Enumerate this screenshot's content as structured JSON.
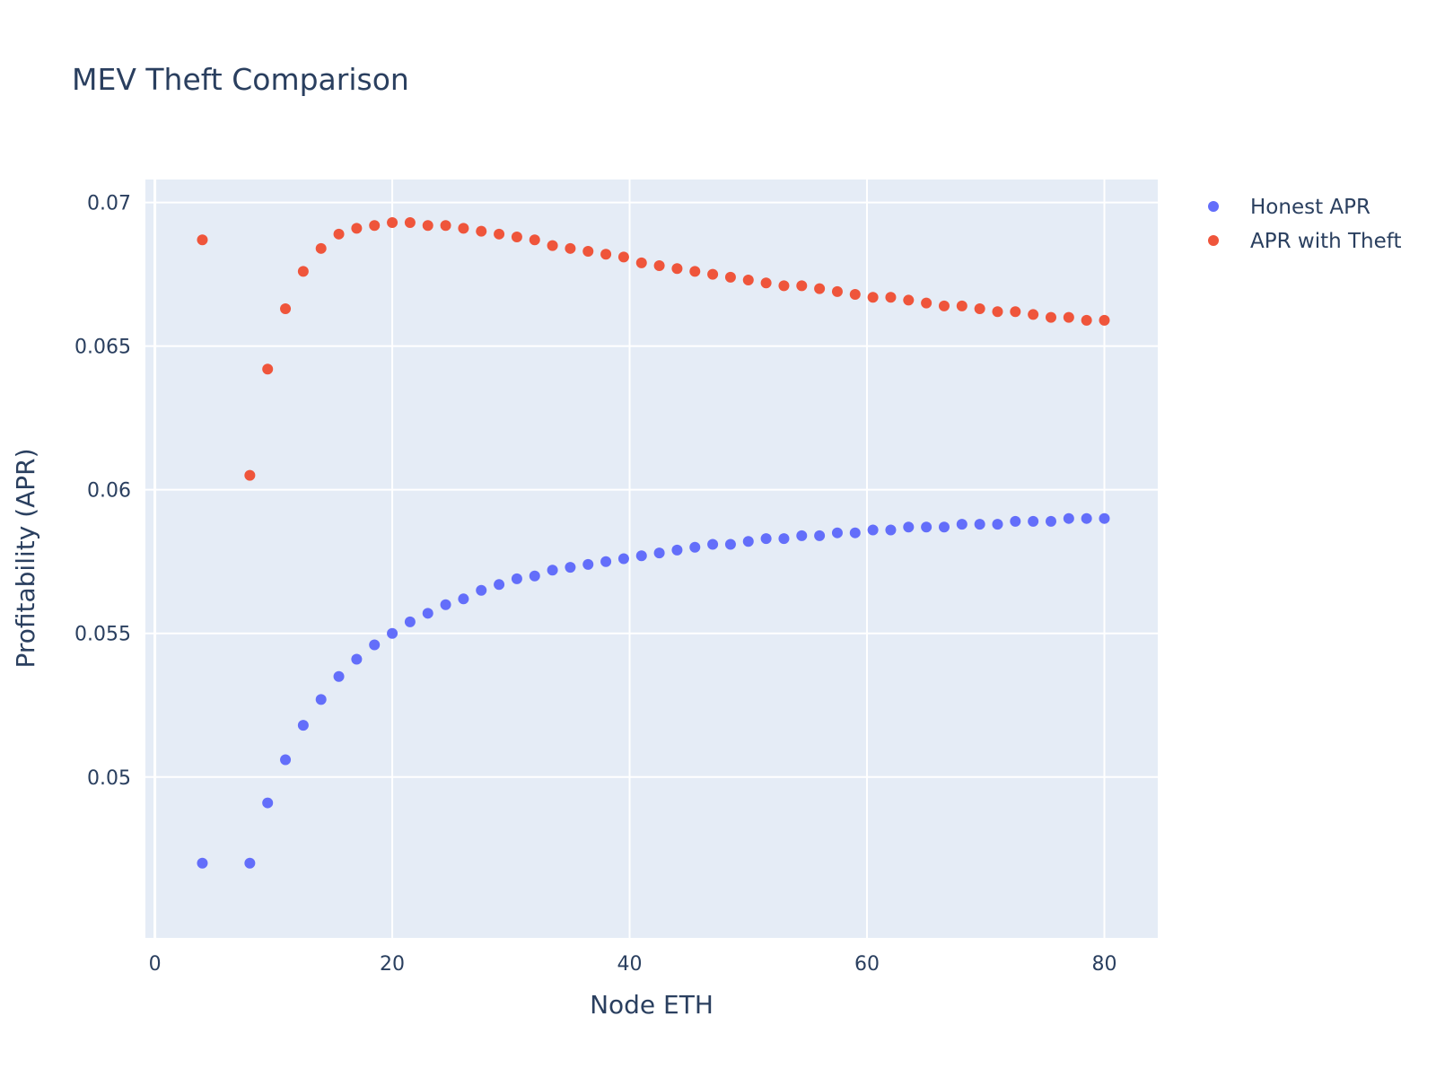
{
  "chart_data": {
    "type": "scatter",
    "title": "MEV Theft Comparison",
    "xlabel": "Node ETH",
    "ylabel": "Profitability (APR)",
    "xlim": [
      -0.8,
      84.5
    ],
    "ylim": [
      0.0444,
      0.0708
    ],
    "xticks": [
      0,
      20,
      40,
      60,
      80
    ],
    "xtick_labels": [
      "0",
      "20",
      "40",
      "60",
      "80"
    ],
    "yticks": [
      0.05,
      0.055,
      0.06,
      0.065,
      0.07
    ],
    "ytick_labels": [
      "0.05",
      "0.055",
      "0.06",
      "0.065",
      "0.07"
    ],
    "grid": true,
    "legend_position": "top-right",
    "plot_background": "#e5ecf6",
    "x": [
      4,
      8,
      9.5,
      11,
      12.5,
      14,
      15.5,
      17,
      18.5,
      20,
      21.5,
      23,
      24.5,
      26,
      27.5,
      29,
      30.5,
      32,
      33.5,
      35,
      36.5,
      38,
      39.5,
      41,
      42.5,
      44,
      45.5,
      47,
      48.5,
      50,
      51.5,
      53,
      54.5,
      56,
      57.5,
      59,
      60.5,
      62,
      63.5,
      65,
      66.5,
      68,
      69.5,
      71,
      72.5,
      74,
      75.5,
      77,
      78.5,
      80
    ],
    "series": [
      {
        "name": "Honest APR",
        "color": "#636efa",
        "values": [
          0.047,
          0.047,
          0.0491,
          0.0506,
          0.0518,
          0.0527,
          0.0535,
          0.0541,
          0.0546,
          0.055,
          0.0554,
          0.0557,
          0.056,
          0.0562,
          0.0565,
          0.0567,
          0.0569,
          0.057,
          0.0572,
          0.0573,
          0.0574,
          0.0575,
          0.0576,
          0.0577,
          0.0578,
          0.0579,
          0.058,
          0.0581,
          0.0581,
          0.0582,
          0.0583,
          0.0583,
          0.0584,
          0.0584,
          0.0585,
          0.0585,
          0.0586,
          0.0586,
          0.0587,
          0.0587,
          0.0587,
          0.0588,
          0.0588,
          0.0588,
          0.0589,
          0.0589,
          0.0589,
          0.059,
          0.059,
          0.059
        ]
      },
      {
        "name": "APR with Theft",
        "color": "#ef553b",
        "values": [
          0.0687,
          0.0605,
          0.0642,
          0.0663,
          0.0676,
          0.0684,
          0.0689,
          0.0691,
          0.0692,
          0.0693,
          0.0693,
          0.0692,
          0.0692,
          0.0691,
          0.069,
          0.0689,
          0.0688,
          0.0687,
          0.0685,
          0.0684,
          0.0683,
          0.0682,
          0.0681,
          0.0679,
          0.0678,
          0.0677,
          0.0676,
          0.0675,
          0.0674,
          0.0673,
          0.0672,
          0.0671,
          0.0671,
          0.067,
          0.0669,
          0.0668,
          0.0667,
          0.0667,
          0.0666,
          0.0665,
          0.0664,
          0.0664,
          0.0663,
          0.0662,
          0.0662,
          0.0661,
          0.066,
          0.066,
          0.0659,
          0.0659
        ]
      }
    ]
  }
}
